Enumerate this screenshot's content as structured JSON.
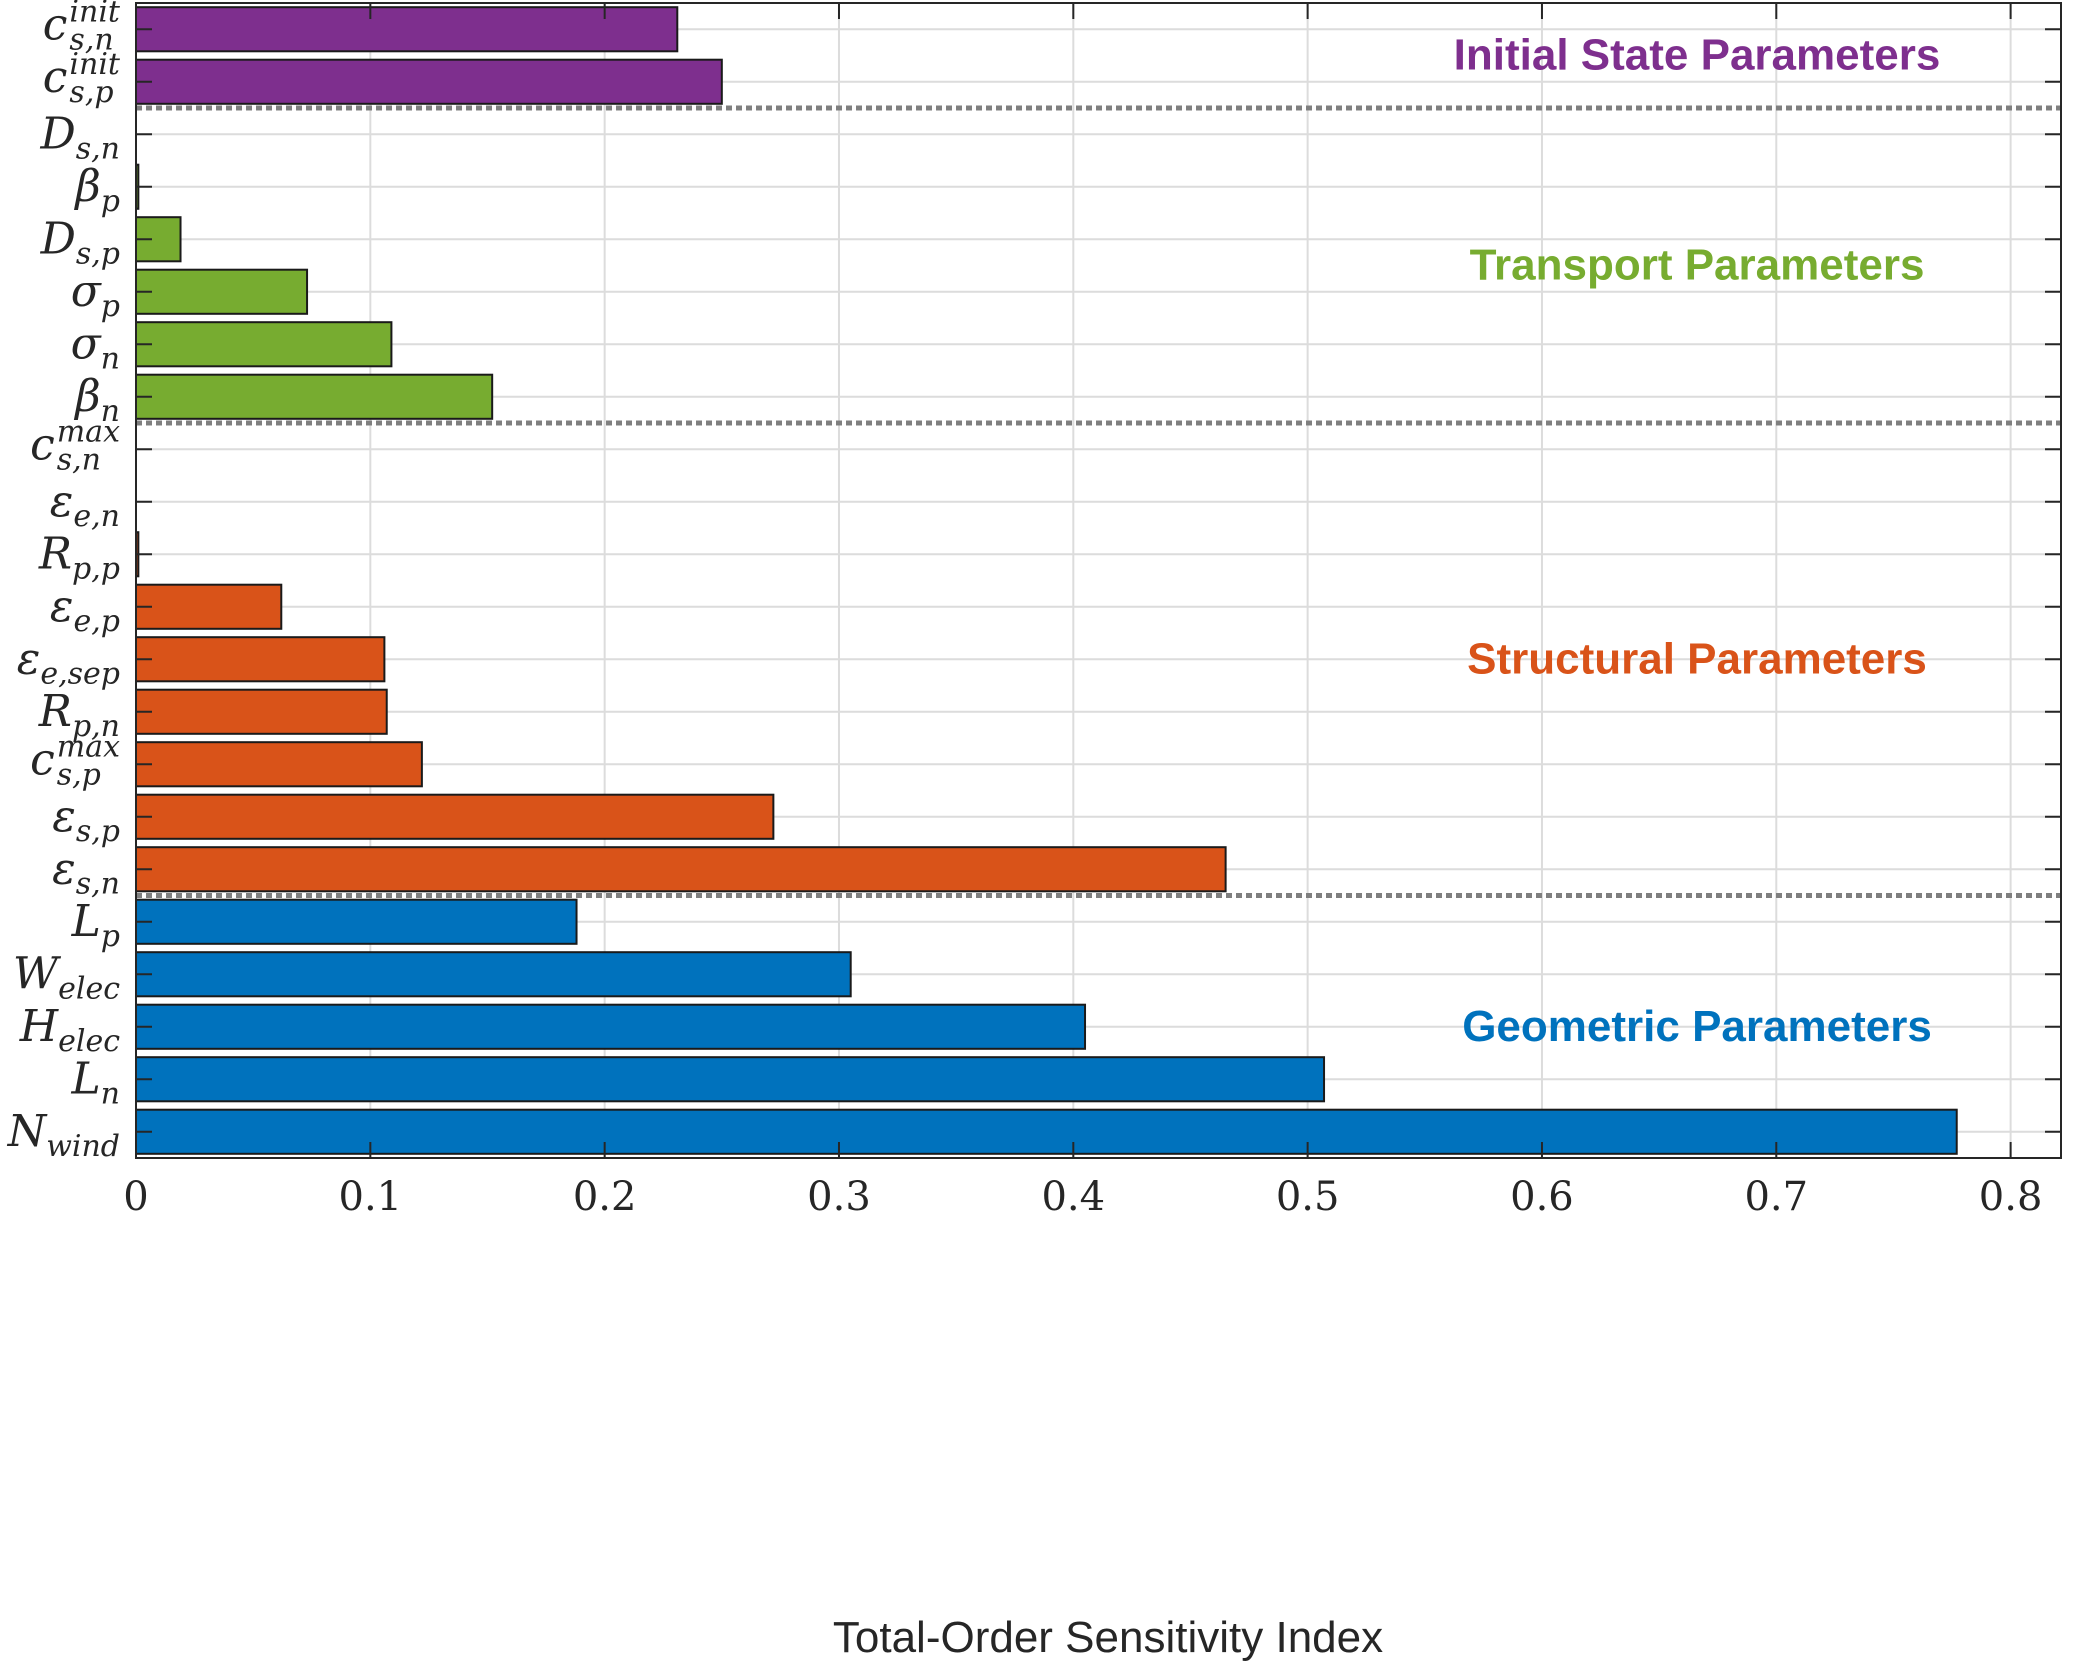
{
  "chart_data": {
    "type": "bar",
    "orientation": "horizontal",
    "xlabel": "Total-Order Sensitivity Index",
    "ylabel": "",
    "xlim": [
      0,
      0.8
    ],
    "xticks": [
      "0",
      "0.1",
      "0.2",
      "0.3",
      "0.4",
      "0.5",
      "0.6",
      "0.7",
      "0.8"
    ],
    "grid": true,
    "groups": [
      {
        "name": "Initial State Parameters",
        "color": "#7E2F8E",
        "bars": [
          {
            "label": "c_{s,n}^{init}",
            "value": 0.231
          },
          {
            "label": "c_{s,p}^{init}",
            "value": 0.25
          }
        ]
      },
      {
        "name": "Transport Parameters",
        "color": "#77AC30",
        "bars": [
          {
            "label": "D_{s,n}",
            "value": 0.0
          },
          {
            "label": "β_p",
            "value": 0.001
          },
          {
            "label": "D_{s,p}",
            "value": 0.019
          },
          {
            "label": "σ_p",
            "value": 0.073
          },
          {
            "label": "σ_n",
            "value": 0.109
          },
          {
            "label": "β_n",
            "value": 0.152
          }
        ]
      },
      {
        "name": "Structural Parameters",
        "color": "#D95319",
        "bars": [
          {
            "label": "c_{s,n}^{max}",
            "value": 0.0
          },
          {
            "label": "ε_{e,n}",
            "value": 0.0
          },
          {
            "label": "R_{p,p}",
            "value": 0.001
          },
          {
            "label": "ε_{e,p}",
            "value": 0.062
          },
          {
            "label": "ε_{e,sep}",
            "value": 0.106
          },
          {
            "label": "R_{p,n}",
            "value": 0.107
          },
          {
            "label": "c_{s,p}^{max}",
            "value": 0.122
          },
          {
            "label": "ε_{s,p}",
            "value": 0.272
          },
          {
            "label": "ε_{s,n}",
            "value": 0.465
          }
        ]
      },
      {
        "name": "Geometric Parameters",
        "color": "#0072BD",
        "bars": [
          {
            "label": "L_p",
            "value": 0.188
          },
          {
            "label": "W_{elec}",
            "value": 0.305
          },
          {
            "label": "H_{elec}",
            "value": 0.405
          },
          {
            "label": "L_n",
            "value": 0.507
          },
          {
            "label": "N_{wind}",
            "value": 0.777
          }
        ]
      }
    ]
  }
}
